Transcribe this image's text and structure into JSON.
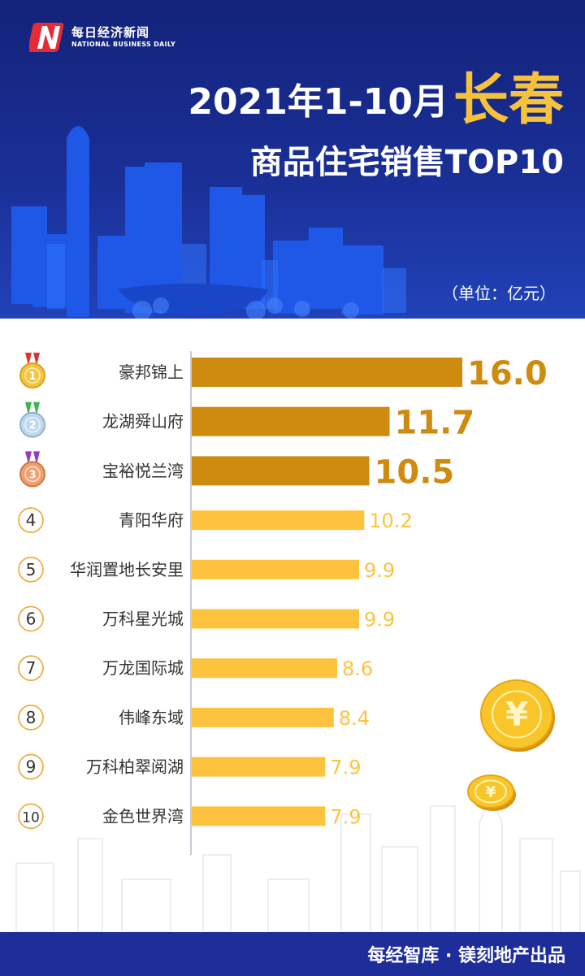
{
  "header": {
    "logo_cn": "每日经济新闻",
    "logo_en": "NATIONAL BUSINESS DAILY",
    "title_prefix": "2021年1-10月",
    "title_city": "长春",
    "title_line2": "商品住宅销售TOP10",
    "unit": "（单位：亿元）"
  },
  "chart_data": {
    "type": "bar",
    "orientation": "horizontal",
    "ranks": [
      "1",
      "2",
      "3",
      "4",
      "5",
      "6",
      "7",
      "8",
      "9",
      "10"
    ],
    "categories": [
      "豪邦锦上",
      "龙湖舜山府",
      "宝裕悦兰湾",
      "青阳华府",
      "华润置地长安里",
      "万科星光城",
      "万龙国际城",
      "伟峰东域",
      "万科柏翠阅湖",
      "金色世界湾"
    ],
    "values": [
      16.0,
      11.7,
      10.5,
      10.2,
      9.9,
      9.9,
      8.6,
      8.4,
      7.9,
      7.9
    ],
    "value_labels": [
      "16.0",
      "11.7",
      "10.5",
      "10.2",
      "9.9",
      "9.9",
      "8.6",
      "8.4",
      "7.9",
      "7.9"
    ],
    "highlight_top": 3,
    "colors": {
      "top3": "#cf8a10",
      "rest": "#fec33e",
      "axis": "#c9cbd6"
    }
  },
  "coin_symbol": "¥",
  "footer": {
    "text": "每经智库 · 镁刻地产出品"
  }
}
